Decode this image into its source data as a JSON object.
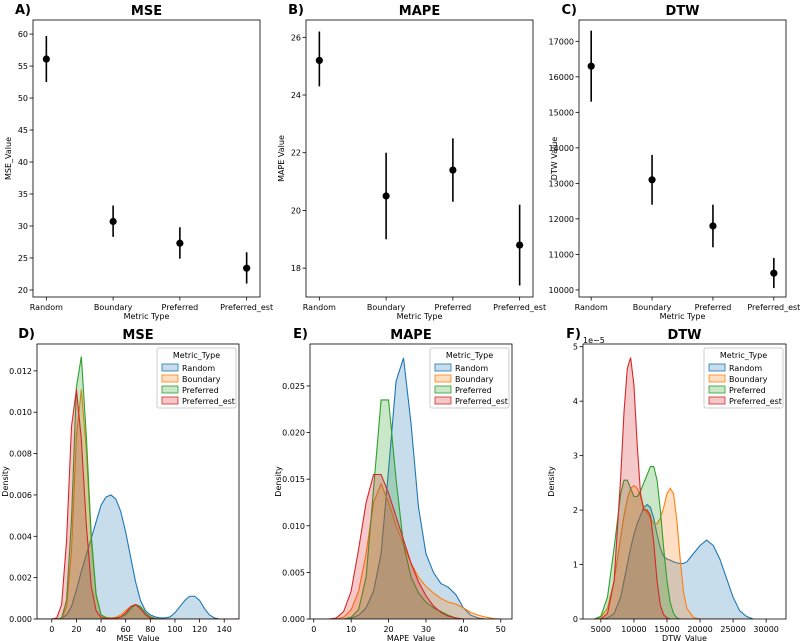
{
  "chart_data": [
    {
      "panel": "A)",
      "type": "pointrange",
      "title": "MSE",
      "xlabel": "Metric Type",
      "ylabel": "MSE_Value",
      "categories": [
        "Random",
        "Boundary",
        "Preferred",
        "Preferred_est"
      ],
      "values": [
        56.1,
        30.7,
        27.3,
        23.4
      ],
      "lower": [
        52.5,
        28.3,
        24.9,
        21.0
      ],
      "upper": [
        59.7,
        33.2,
        29.8,
        25.9
      ],
      "ylim": [
        18.9,
        62.2
      ],
      "yticks": [
        20,
        25,
        30,
        35,
        40,
        45,
        50,
        55,
        60
      ]
    },
    {
      "panel": "B)",
      "type": "pointrange",
      "title": "MAPE",
      "xlabel": "Metric Type",
      "ylabel": "MAPE Value",
      "categories": [
        "Random",
        "Boundary",
        "Preferred",
        "Preferred_est"
      ],
      "values": [
        25.2,
        20.5,
        21.4,
        18.8
      ],
      "lower": [
        24.3,
        19.0,
        20.3,
        17.4
      ],
      "upper": [
        26.2,
        22.0,
        22.5,
        20.2
      ],
      "ylim": [
        17.0,
        26.6
      ],
      "yticks": [
        18,
        20,
        22,
        24,
        26
      ]
    },
    {
      "panel": "C)",
      "type": "pointrange",
      "title": "DTW",
      "xlabel": "Metric Type",
      "ylabel": "DTW Value",
      "categories": [
        "Random",
        "Boundary",
        "Preferred",
        "Preferred_est"
      ],
      "values": [
        16300,
        13100,
        11800,
        10470
      ],
      "lower": [
        15300,
        12400,
        11200,
        10050
      ],
      "upper": [
        17300,
        13800,
        12400,
        10900
      ],
      "ylim": [
        9800,
        17600
      ],
      "yticks": [
        10000,
        11000,
        12000,
        13000,
        14000,
        15000,
        16000,
        17000
      ]
    },
    {
      "panel": "D)",
      "type": "area",
      "title": "MSE",
      "xlabel": "MSE_Value",
      "ylabel": "Density",
      "legend_title": "Metric_Type",
      "legend_position": "top-right",
      "xlim": [
        -12,
        152
      ],
      "ylim": [
        0,
        0.0133
      ],
      "xticks": [
        0,
        20,
        40,
        60,
        80,
        100,
        120,
        140
      ],
      "yticks": [
        0.0,
        0.002,
        0.004,
        0.006,
        0.008,
        0.01,
        0.012
      ],
      "ytick_labels": [
        "0.000",
        "0.002",
        "0.004",
        "0.006",
        "0.008",
        "0.010",
        "0.012"
      ],
      "x": [
        -12,
        -8,
        -4,
        0,
        4,
        8,
        12,
        16,
        20,
        24,
        28,
        32,
        36,
        40,
        44,
        48,
        52,
        56,
        60,
        64,
        68,
        72,
        76,
        80,
        84,
        88,
        92,
        96,
        100,
        104,
        108,
        112,
        116,
        120,
        124,
        128,
        132,
        136,
        140,
        144,
        148,
        152
      ],
      "series": [
        {
          "name": "Random",
          "values": [
            0,
            0,
            0,
            0,
            0,
            3e-05,
            0.0002,
            0.0006,
            0.0014,
            0.0023,
            0.0031,
            0.0039,
            0.0047,
            0.0055,
            0.0059,
            0.006,
            0.0058,
            0.0052,
            0.0042,
            0.003,
            0.0018,
            0.0009,
            0.0004,
            0.0002,
            0.0001,
            5e-05,
            5e-05,
            0.0001,
            0.0003,
            0.0006,
            0.0009,
            0.0011,
            0.0011,
            0.0009,
            0.0005,
            0.0002,
            5e-05,
            0,
            0,
            0,
            0,
            0
          ]
        },
        {
          "name": "Boundary",
          "values": [
            0,
            0,
            0,
            0,
            0,
            2e-05,
            0.0006,
            0.0033,
            0.0088,
            0.0111,
            0.0082,
            0.0038,
            0.0011,
            0.0002,
            8e-05,
            5e-05,
            8e-05,
            0.0002,
            0.0004,
            0.0006,
            0.0007,
            0.0006,
            0.0003,
            0.0001,
            3e-05,
            0,
            0,
            0,
            0,
            0,
            0,
            0,
            0,
            0,
            0,
            0,
            0,
            0,
            0,
            0,
            0,
            0
          ]
        },
        {
          "name": "Preferred",
          "values": [
            0,
            0,
            0,
            0,
            0,
            5e-05,
            0.0009,
            0.0048,
            0.0112,
            0.0127,
            0.0089,
            0.0041,
            0.0012,
            0.0002,
            6e-05,
            3e-05,
            5e-05,
            0.0001,
            0.0002,
            0.0005,
            0.0007,
            0.0006,
            0.0003,
            0.0001,
            2e-05,
            0,
            0,
            0,
            0,
            0,
            0,
            0,
            0,
            0,
            0,
            0,
            0,
            0,
            0,
            0,
            0,
            0
          ]
        },
        {
          "name": "Preferred_est",
          "values": [
            0,
            0,
            0,
            0,
            5e-05,
            0.0007,
            0.0038,
            0.0093,
            0.0111,
            0.0087,
            0.0046,
            0.0016,
            0.0004,
            8e-05,
            3e-05,
            2e-05,
            4e-05,
            0.0001,
            0.0003,
            0.0006,
            0.0007,
            0.0005,
            0.0002,
            5e-05,
            0,
            0,
            0,
            0,
            0,
            0,
            0,
            0,
            0,
            0,
            0,
            0,
            0,
            0,
            0,
            0,
            0,
            0
          ]
        }
      ]
    },
    {
      "panel": "E)",
      "type": "area",
      "title": "MAPE",
      "xlabel": "MAPE_Value",
      "ylabel": "Density",
      "legend_title": "Metric_Type",
      "legend_position": "top-right",
      "xlim": [
        -1,
        53
      ],
      "ylim": [
        0,
        0.0295
      ],
      "xticks": [
        0,
        10,
        20,
        30,
        40,
        50
      ],
      "yticks": [
        0.0,
        0.005,
        0.01,
        0.015,
        0.02,
        0.025
      ],
      "ytick_labels": [
        "0.000",
        "0.005",
        "0.010",
        "0.015",
        "0.020",
        "0.025"
      ],
      "x": [
        0,
        2,
        4,
        6,
        8,
        10,
        12,
        14,
        16,
        18,
        20,
        22,
        24,
        26,
        28,
        30,
        32,
        34,
        36,
        38,
        40,
        42,
        44,
        46,
        48,
        50
      ],
      "series": [
        {
          "name": "Random",
          "values": [
            0,
            0,
            0,
            0,
            0,
            0.0001,
            0.0004,
            0.0012,
            0.003,
            0.007,
            0.016,
            0.0255,
            0.028,
            0.021,
            0.012,
            0.007,
            0.005,
            0.0038,
            0.0034,
            0.0026,
            0.0012,
            0.0004,
            0.0001,
            0,
            0,
            0
          ]
        },
        {
          "name": "Boundary",
          "values": [
            0,
            0,
            0,
            0,
            0.0002,
            0.001,
            0.003,
            0.007,
            0.0125,
            0.0145,
            0.0125,
            0.01,
            0.008,
            0.006,
            0.0045,
            0.0035,
            0.0028,
            0.0022,
            0.0018,
            0.0016,
            0.0012,
            0.0007,
            0.0004,
            0.0002,
            5e-05,
            0
          ]
        },
        {
          "name": "Preferred",
          "values": [
            0,
            0,
            0,
            0,
            0,
            0.0002,
            0.001,
            0.0045,
            0.014,
            0.0235,
            0.0235,
            0.015,
            0.008,
            0.0045,
            0.0028,
            0.0018,
            0.0012,
            0.0008,
            0.0004,
            0.0001,
            0,
            0,
            0,
            0,
            0,
            0
          ]
        },
        {
          "name": "Preferred_est",
          "values": [
            0,
            0,
            0,
            0.0001,
            0.0008,
            0.003,
            0.0075,
            0.0125,
            0.0155,
            0.0155,
            0.0135,
            0.011,
            0.0085,
            0.006,
            0.004,
            0.0025,
            0.0014,
            0.0007,
            0.0003,
            0.0001,
            0,
            0,
            0,
            0,
            0,
            0
          ]
        }
      ]
    },
    {
      "panel": "F)",
      "type": "area",
      "title": "DTW",
      "xlabel": "DTW_Value",
      "ylabel": "Density",
      "axis_multiplier": "1e−5",
      "legend_title": "Metric_Type",
      "legend_position": "top-right",
      "xlim": [
        2300,
        33000
      ],
      "ylim": [
        0,
        5.05
      ],
      "xticks": [
        5000,
        10000,
        15000,
        20000,
        25000,
        30000
      ],
      "yticks": [
        0,
        1,
        2,
        3,
        4,
        5
      ],
      "ytick_labels": [
        "0",
        "1",
        "2",
        "3",
        "4",
        "5"
      ],
      "x": [
        4000,
        5000,
        6000,
        7000,
        8000,
        8500,
        9000,
        9500,
        10000,
        10500,
        11000,
        11500,
        12000,
        12500,
        13000,
        13500,
        14000,
        14500,
        15000,
        15500,
        16000,
        16500,
        17000,
        17500,
        18000,
        19000,
        20000,
        21000,
        22000,
        23000,
        24000,
        25000,
        26000,
        27000,
        28000
      ],
      "series": [
        {
          "name": "Random",
          "values": [
            0,
            0,
            0.02,
            0.1,
            0.4,
            0.7,
            1.0,
            1.3,
            1.55,
            1.75,
            1.9,
            2.05,
            2.1,
            2.05,
            1.85,
            1.55,
            1.3,
            1.15,
            1.1,
            1.08,
            1.05,
            1.03,
            1.02,
            1.02,
            1.05,
            1.2,
            1.35,
            1.45,
            1.35,
            1.1,
            0.75,
            0.4,
            0.15,
            0.05,
            0
          ]
        },
        {
          "name": "Boundary",
          "values": [
            0,
            0.03,
            0.2,
            0.7,
            1.5,
            1.9,
            2.2,
            2.4,
            2.45,
            2.4,
            2.25,
            2.05,
            1.95,
            1.85,
            1.75,
            1.75,
            1.85,
            2.05,
            2.3,
            2.4,
            2.3,
            1.8,
            1.1,
            0.5,
            0.2,
            0.03,
            0,
            0,
            0,
            0,
            0,
            0,
            0,
            0,
            0
          ]
        },
        {
          "name": "Preferred",
          "values": [
            0,
            0.05,
            0.4,
            1.3,
            2.3,
            2.55,
            2.55,
            2.4,
            2.25,
            2.25,
            2.35,
            2.5,
            2.65,
            2.8,
            2.8,
            2.55,
            2.0,
            1.3,
            0.7,
            0.3,
            0.1,
            0.02,
            0,
            0,
            0,
            0,
            0,
            0,
            0,
            0,
            0,
            0,
            0,
            0,
            0
          ]
        },
        {
          "name": "Preferred_est",
          "values": [
            0,
            0,
            0.1,
            0.7,
            2.6,
            3.8,
            4.6,
            4.8,
            4.3,
            3.2,
            2.3,
            2.0,
            2.0,
            1.9,
            1.4,
            0.7,
            0.25,
            0.08,
            0.02,
            0,
            0,
            0,
            0,
            0,
            0,
            0,
            0,
            0,
            0,
            0,
            0,
            0,
            0,
            0,
            0
          ]
        }
      ]
    }
  ]
}
